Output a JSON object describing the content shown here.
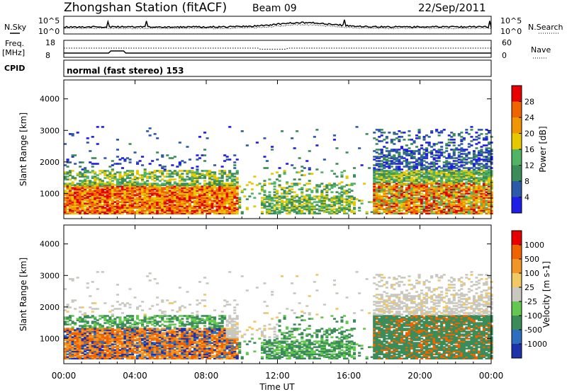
{
  "header": {
    "station": "Zhongshan Station (fitACF)",
    "beam": "Beam 09",
    "date": "22/Sep/2011"
  },
  "noise_panel": {
    "left_label": "N.Sky",
    "right_label": "N.Search",
    "left_ticks": [
      "10^5",
      "10^0"
    ],
    "right_ticks": [
      "10^5",
      "10^0"
    ]
  },
  "freq_panel": {
    "left_label_top": "Freq.",
    "left_label_bottom": "[MHz]",
    "left_ticks": [
      "18",
      "8"
    ],
    "right_label": "Nave",
    "right_ticks": [
      "60",
      "0"
    ]
  },
  "cpid": {
    "label": "CPID",
    "value": "normal (fast stereo) 153"
  },
  "x_axis": {
    "ticks": [
      "00:00",
      "04:00",
      "08:00",
      "12:00",
      "16:00",
      "20:00",
      "00:00"
    ],
    "label": "Time UT"
  },
  "chart_data": [
    {
      "type": "heatmap",
      "name": "power",
      "ylabel": "Slant Range [km]",
      "yticks": [
        1000,
        2000,
        3000,
        4000
      ],
      "ylim": [
        200,
        4600
      ],
      "xlim_hours": [
        0,
        24
      ],
      "colorbar_label": "Power [dB]",
      "colorbar_ticks": [
        "28",
        "24",
        "20",
        "16",
        "12",
        "8",
        "4"
      ],
      "colors": [
        "#1e1ee6",
        "#2d5aa8",
        "#3c8c5a",
        "#50b464",
        "#e6c800",
        "#f09600",
        "#f06400",
        "#e60000"
      ]
    },
    {
      "type": "heatmap",
      "name": "velocity",
      "ylabel": "Slant Range [km]",
      "yticks": [
        1000,
        2000,
        3000,
        4000
      ],
      "ylim": [
        200,
        4600
      ],
      "xlim_hours": [
        0,
        24
      ],
      "colorbar_label": "Velocity [m s-1]",
      "colorbar_ticks": [
        "1000",
        "500",
        "100",
        "25",
        "-25",
        "-100",
        "-500",
        "-1000"
      ],
      "colors": [
        "#1e32aa",
        "#2d6ebe",
        "#3c8c5a",
        "#64c850",
        "#c8c8c0",
        "#f0c864",
        "#f09628",
        "#f06400",
        "#e60000"
      ]
    }
  ]
}
